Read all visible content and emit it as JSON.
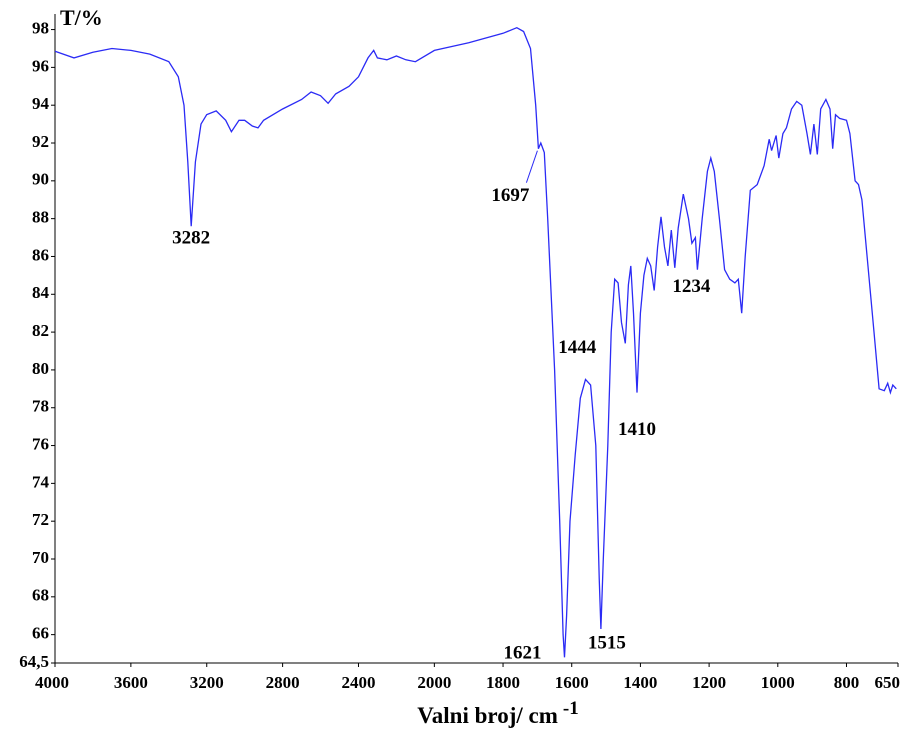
{
  "chart_data": {
    "type": "line",
    "y_label": "T/%",
    "x_label": "Valni broj/ cm",
    "x_label_superscript": "-1",
    "xlim": [
      4000,
      650
    ],
    "x_break": 2000,
    "xticks": [
      4000,
      3600,
      3200,
      2800,
      2400,
      2000,
      1800,
      1600,
      1400,
      1200,
      1000,
      800,
      650
    ],
    "ylim": [
      64.5,
      98.4
    ],
    "yticks": [
      {
        "value": 64.5,
        "label": "64,5"
      },
      66,
      68,
      70,
      72,
      74,
      76,
      78,
      80,
      82,
      84,
      86,
      88,
      90,
      92,
      94,
      96,
      98
    ],
    "x": [
      4000,
      3900,
      3800,
      3700,
      3600,
      3500,
      3400,
      3350,
      3320,
      3300,
      3282,
      3260,
      3230,
      3200,
      3150,
      3100,
      3070,
      3030,
      3000,
      2960,
      2930,
      2900,
      2800,
      2700,
      2650,
      2600,
      2560,
      2520,
      2450,
      2400,
      2350,
      2320,
      2300,
      2250,
      2200,
      2150,
      2100,
      2000,
      1900,
      1800,
      1760,
      1740,
      1720,
      1705,
      1697,
      1690,
      1680,
      1670,
      1650,
      1635,
      1625,
      1621,
      1615,
      1605,
      1590,
      1575,
      1560,
      1545,
      1530,
      1520,
      1515,
      1508,
      1495,
      1485,
      1475,
      1465,
      1455,
      1444,
      1435,
      1428,
      1420,
      1410,
      1400,
      1390,
      1380,
      1370,
      1360,
      1350,
      1340,
      1330,
      1320,
      1310,
      1300,
      1290,
      1275,
      1260,
      1250,
      1240,
      1234,
      1220,
      1205,
      1195,
      1185,
      1170,
      1155,
      1140,
      1125,
      1115,
      1105,
      1095,
      1080,
      1060,
      1040,
      1025,
      1018,
      1005,
      997,
      985,
      975,
      960,
      945,
      930,
      915,
      905,
      895,
      885,
      875,
      860,
      848,
      840,
      832,
      820,
      800,
      790,
      775,
      765,
      755,
      740,
      720,
      705,
      690,
      680,
      672,
      665,
      655
    ],
    "series": [
      {
        "color": "#2b2bf5",
        "values": [
          96.85,
          96.5,
          96.8,
          97.0,
          96.9,
          96.7,
          96.3,
          95.5,
          94.0,
          91.0,
          87.6,
          91.0,
          93.0,
          93.5,
          93.7,
          93.2,
          92.6,
          93.2,
          93.2,
          92.9,
          92.8,
          93.2,
          93.8,
          94.3,
          94.7,
          94.5,
          94.1,
          94.6,
          95.0,
          95.5,
          96.5,
          96.9,
          96.5,
          96.4,
          96.6,
          96.4,
          96.3,
          96.9,
          97.3,
          97.8,
          98.1,
          97.9,
          97.0,
          94.0,
          91.7,
          92.0,
          91.5,
          88.0,
          80.0,
          72.0,
          66.0,
          64.8,
          67.0,
          72.0,
          75.5,
          78.5,
          79.5,
          79.2,
          76.0,
          69.0,
          66.3,
          70.0,
          76.0,
          82.0,
          84.8,
          84.6,
          82.5,
          81.4,
          84.5,
          85.5,
          83.0,
          78.8,
          83.0,
          85.0,
          85.9,
          85.5,
          84.2,
          86.5,
          88.1,
          86.5,
          85.5,
          87.4,
          85.4,
          87.5,
          89.3,
          88.0,
          86.7,
          87.0,
          85.3,
          88.0,
          90.5,
          91.2,
          90.5,
          88.0,
          85.3,
          84.8,
          84.6,
          84.8,
          83.0,
          86.0,
          89.5,
          89.8,
          90.8,
          92.2,
          91.6,
          92.4,
          91.2,
          92.5,
          92.8,
          93.8,
          94.2,
          94.0,
          92.5,
          91.4,
          93.0,
          91.4,
          93.8,
          94.3,
          93.8,
          91.7,
          93.5,
          93.3,
          93.2,
          92.5,
          90.0,
          89.8,
          89.0,
          86.0,
          82.0,
          79.0,
          78.9,
          79.3,
          78.8,
          79.2,
          79.0
        ]
      }
    ],
    "peaks": [
      3282,
      1697,
      1621,
      1515,
      1444,
      1410,
      1234
    ]
  }
}
